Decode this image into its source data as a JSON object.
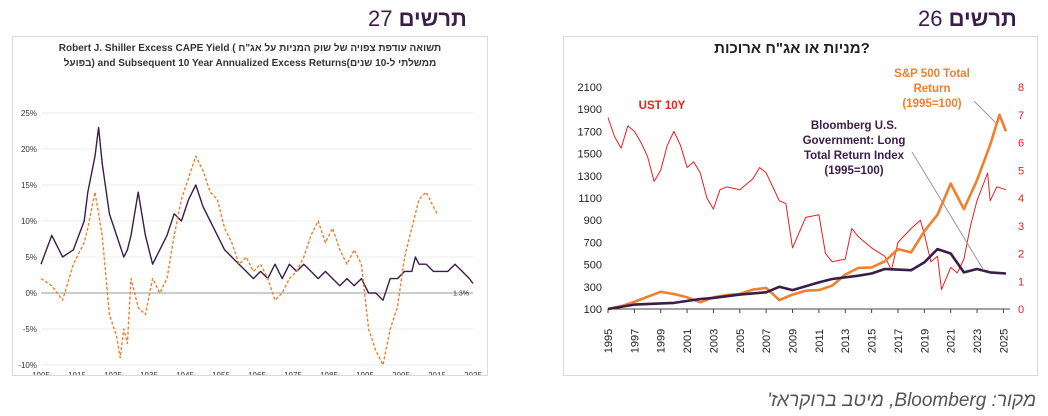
{
  "left_header": {
    "title": "תרשים",
    "number": "27"
  },
  "right_header": {
    "title": "תרשים",
    "number": "26"
  },
  "source_note": "מקור: Bloomberg, מיטב ברוקראז'",
  "colors": {
    "purple": "#3b1d4a",
    "orange": "#f07f2e",
    "red": "#e8201e",
    "header": "#3b1d4a"
  },
  "chart_data": [
    {
      "type": "line",
      "title_line1": "Robert J. Shiller Excess CAPE Yield ( תשואה עודפת צפויה של שוק המניות על אג\"ח",
      "title_line2": "בפועל) and Subsequent 10 Year Annualized Excess Returns(ממשלתי ל-10 שנים",
      "x_ticks": [
        "1905",
        "1915",
        "1925",
        "1935",
        "1945",
        "1955",
        "1965",
        "1975",
        "1985",
        "1995",
        "2005",
        "2015",
        "2025"
      ],
      "y_ticks": [
        "25%",
        "20%",
        "15%",
        "10%",
        "5%",
        "0%",
        "-5%",
        "-10%"
      ],
      "xlim": [
        1905,
        2025
      ],
      "ylim": [
        -10,
        25
      ],
      "end_label": "1.3%",
      "series": [
        {
          "name": "Excess CAPE Yield",
          "color": "#3b1d4a",
          "dash": false,
          "x": [
            1905,
            1908,
            1911,
            1914,
            1917,
            1918,
            1920,
            1921,
            1922,
            1924,
            1926,
            1928,
            1929,
            1930,
            1932,
            1934,
            1936,
            1938,
            1940,
            1942,
            1944,
            1946,
            1948,
            1950,
            1952,
            1954,
            1956,
            1958,
            1960,
            1962,
            1964,
            1966,
            1968,
            1970,
            1972,
            1974,
            1976,
            1978,
            1980,
            1982,
            1984,
            1986,
            1988,
            1990,
            1992,
            1994,
            1996,
            1998,
            2000,
            2002,
            2004,
            2006,
            2008,
            2009,
            2010,
            2012,
            2014,
            2016,
            2018,
            2020,
            2022,
            2024,
            2025
          ],
          "y": [
            4,
            8,
            5,
            6,
            10,
            14,
            19,
            23,
            18,
            11,
            8,
            5,
            6,
            8,
            14,
            8,
            4,
            6,
            8,
            11,
            10,
            13,
            15,
            12,
            10,
            8,
            6,
            5,
            4,
            3,
            2,
            3,
            2,
            4,
            2,
            4,
            3,
            4,
            3,
            2,
            3,
            2,
            1,
            2,
            1,
            2,
            0,
            0,
            -1,
            2,
            2,
            3,
            3,
            5,
            4,
            4,
            3,
            3,
            3,
            4,
            3,
            2,
            1.3
          ]
        },
        {
          "name": "Subsequent 10 Year Annualized Excess Returns",
          "color": "#f07f2e",
          "dash": true,
          "x": [
            1905,
            1908,
            1911,
            1914,
            1917,
            1918,
            1920,
            1922,
            1924,
            1926,
            1927,
            1928,
            1929,
            1930,
            1932,
            1934,
            1936,
            1938,
            1940,
            1942,
            1944,
            1946,
            1948,
            1950,
            1952,
            1954,
            1956,
            1958,
            1960,
            1962,
            1964,
            1966,
            1968,
            1970,
            1972,
            1974,
            1976,
            1978,
            1980,
            1982,
            1984,
            1986,
            1988,
            1990,
            1992,
            1994,
            1996,
            1998,
            2000,
            2002,
            2004,
            2006,
            2008,
            2009,
            2010,
            2012,
            2014,
            2015
          ],
          "y": [
            2,
            1,
            -1,
            4,
            7,
            9,
            14,
            8,
            -3,
            -6,
            -9,
            -5,
            -7,
            2,
            -2,
            -3,
            2,
            0,
            2,
            8,
            13,
            16,
            19,
            17,
            14,
            13,
            9,
            7,
            4,
            5,
            3,
            4,
            2,
            -1,
            0,
            2,
            3,
            5,
            8,
            10,
            7,
            9,
            6,
            4,
            6,
            4,
            -5,
            -8,
            -10,
            -5,
            -2,
            5,
            9,
            11,
            13,
            14,
            12,
            11
          ]
        }
      ]
    },
    {
      "type": "line",
      "title": "מניות או אג\"ח ארוכות?",
      "x_ticks": [
        "1995",
        "1997",
        "1999",
        "2001",
        "2003",
        "2005",
        "2007",
        "2009",
        "2011",
        "2013",
        "2015",
        "2017",
        "2019",
        "2021",
        "2023",
        "2025"
      ],
      "y_ticks_left": [
        "2100",
        "1900",
        "1700",
        "1500",
        "1300",
        "1100",
        "900",
        "700",
        "500",
        "300",
        "100"
      ],
      "y_ticks_right": [
        "8",
        "7",
        "6",
        "5",
        "4",
        "3",
        "2",
        "1",
        "0"
      ],
      "xlim": [
        1995,
        2025.5
      ],
      "ylim_left": [
        100,
        2100
      ],
      "ylim_right": [
        0,
        8
      ],
      "annotations": {
        "ust": "UST 10Y",
        "spx_line1": "S&P 500 Total",
        "spx_line2": "Return",
        "spx_line3": "(1995=100)",
        "bbg_line1": "Bloomberg U.S.",
        "bbg_line2": "Government: Long",
        "bbg_line3": "Total Return Index",
        "bbg_line4": "(1995=100)"
      },
      "series": [
        {
          "name": "S&P 500 Total Return (1995=100)",
          "axis": "left",
          "color": "#f07f2e",
          "x": [
            1995,
            1996,
            1997,
            1998,
            1999,
            2000,
            2001,
            2002,
            2003,
            2004,
            2005,
            2006,
            2007,
            2008,
            2009,
            2010,
            2011,
            2012,
            2013,
            2014,
            2015,
            2016,
            2017,
            2018,
            2019,
            2020,
            2021,
            2022,
            2023,
            2024,
            2024.7,
            2025.2
          ],
          "y": [
            100,
            125,
            165,
            210,
            255,
            235,
            205,
            160,
            205,
            225,
            235,
            275,
            290,
            180,
            230,
            265,
            270,
            310,
            410,
            470,
            475,
            530,
            640,
            610,
            800,
            950,
            1230,
            1000,
            1260,
            1580,
            1850,
            1700
          ]
        },
        {
          "name": "Bloomberg U.S. Government: Long Total Return Index (1995=100)",
          "axis": "left",
          "color": "#3b1d4a",
          "x": [
            1995,
            1997,
            1999,
            2000,
            2002,
            2003,
            2005,
            2007,
            2008,
            2009,
            2011,
            2012,
            2014,
            2015,
            2016,
            2018,
            2019,
            2020,
            2021,
            2022,
            2023,
            2024,
            2025.2
          ],
          "y": [
            100,
            140,
            150,
            155,
            190,
            200,
            230,
            250,
            300,
            270,
            340,
            370,
            400,
            420,
            460,
            450,
            520,
            640,
            600,
            430,
            460,
            430,
            420
          ]
        },
        {
          "name": "UST 10Y",
          "axis": "right",
          "color": "#e8201e",
          "x": [
            1995,
            1995.5,
            1996,
            1996.5,
            1997,
            1997.5,
            1998,
            1998.5,
            1999,
            1999.5,
            2000,
            2000.5,
            2001,
            2001.5,
            2002,
            2002.5,
            2003,
            2003.5,
            2004,
            2005,
            2006,
            2006.5,
            2007,
            2007.5,
            2008,
            2008.5,
            2009,
            2010,
            2011,
            2011.5,
            2012,
            2013,
            2013.5,
            2014,
            2015,
            2016,
            2016.5,
            2017,
            2018,
            2018.7,
            2019,
            2019.5,
            2020,
            2020.3,
            2021,
            2021.5,
            2022,
            2022.5,
            2023,
            2023.8,
            2024,
            2024.5,
            2025.2
          ],
          "y": [
            6.9,
            6.2,
            5.8,
            6.6,
            6.4,
            6.0,
            5.5,
            4.6,
            5.0,
            5.9,
            6.4,
            5.9,
            5.1,
            5.3,
            4.9,
            4.0,
            3.6,
            4.3,
            4.4,
            4.3,
            4.7,
            5.1,
            4.9,
            4.4,
            3.9,
            3.8,
            2.2,
            3.3,
            3.4,
            2.0,
            1.7,
            1.8,
            2.9,
            2.6,
            2.2,
            1.9,
            1.4,
            2.4,
            2.9,
            3.2,
            2.7,
            1.7,
            1.9,
            0.7,
            1.5,
            1.3,
            1.8,
            3.0,
            3.9,
            4.9,
            3.9,
            4.4,
            4.3
          ]
        }
      ]
    }
  ]
}
